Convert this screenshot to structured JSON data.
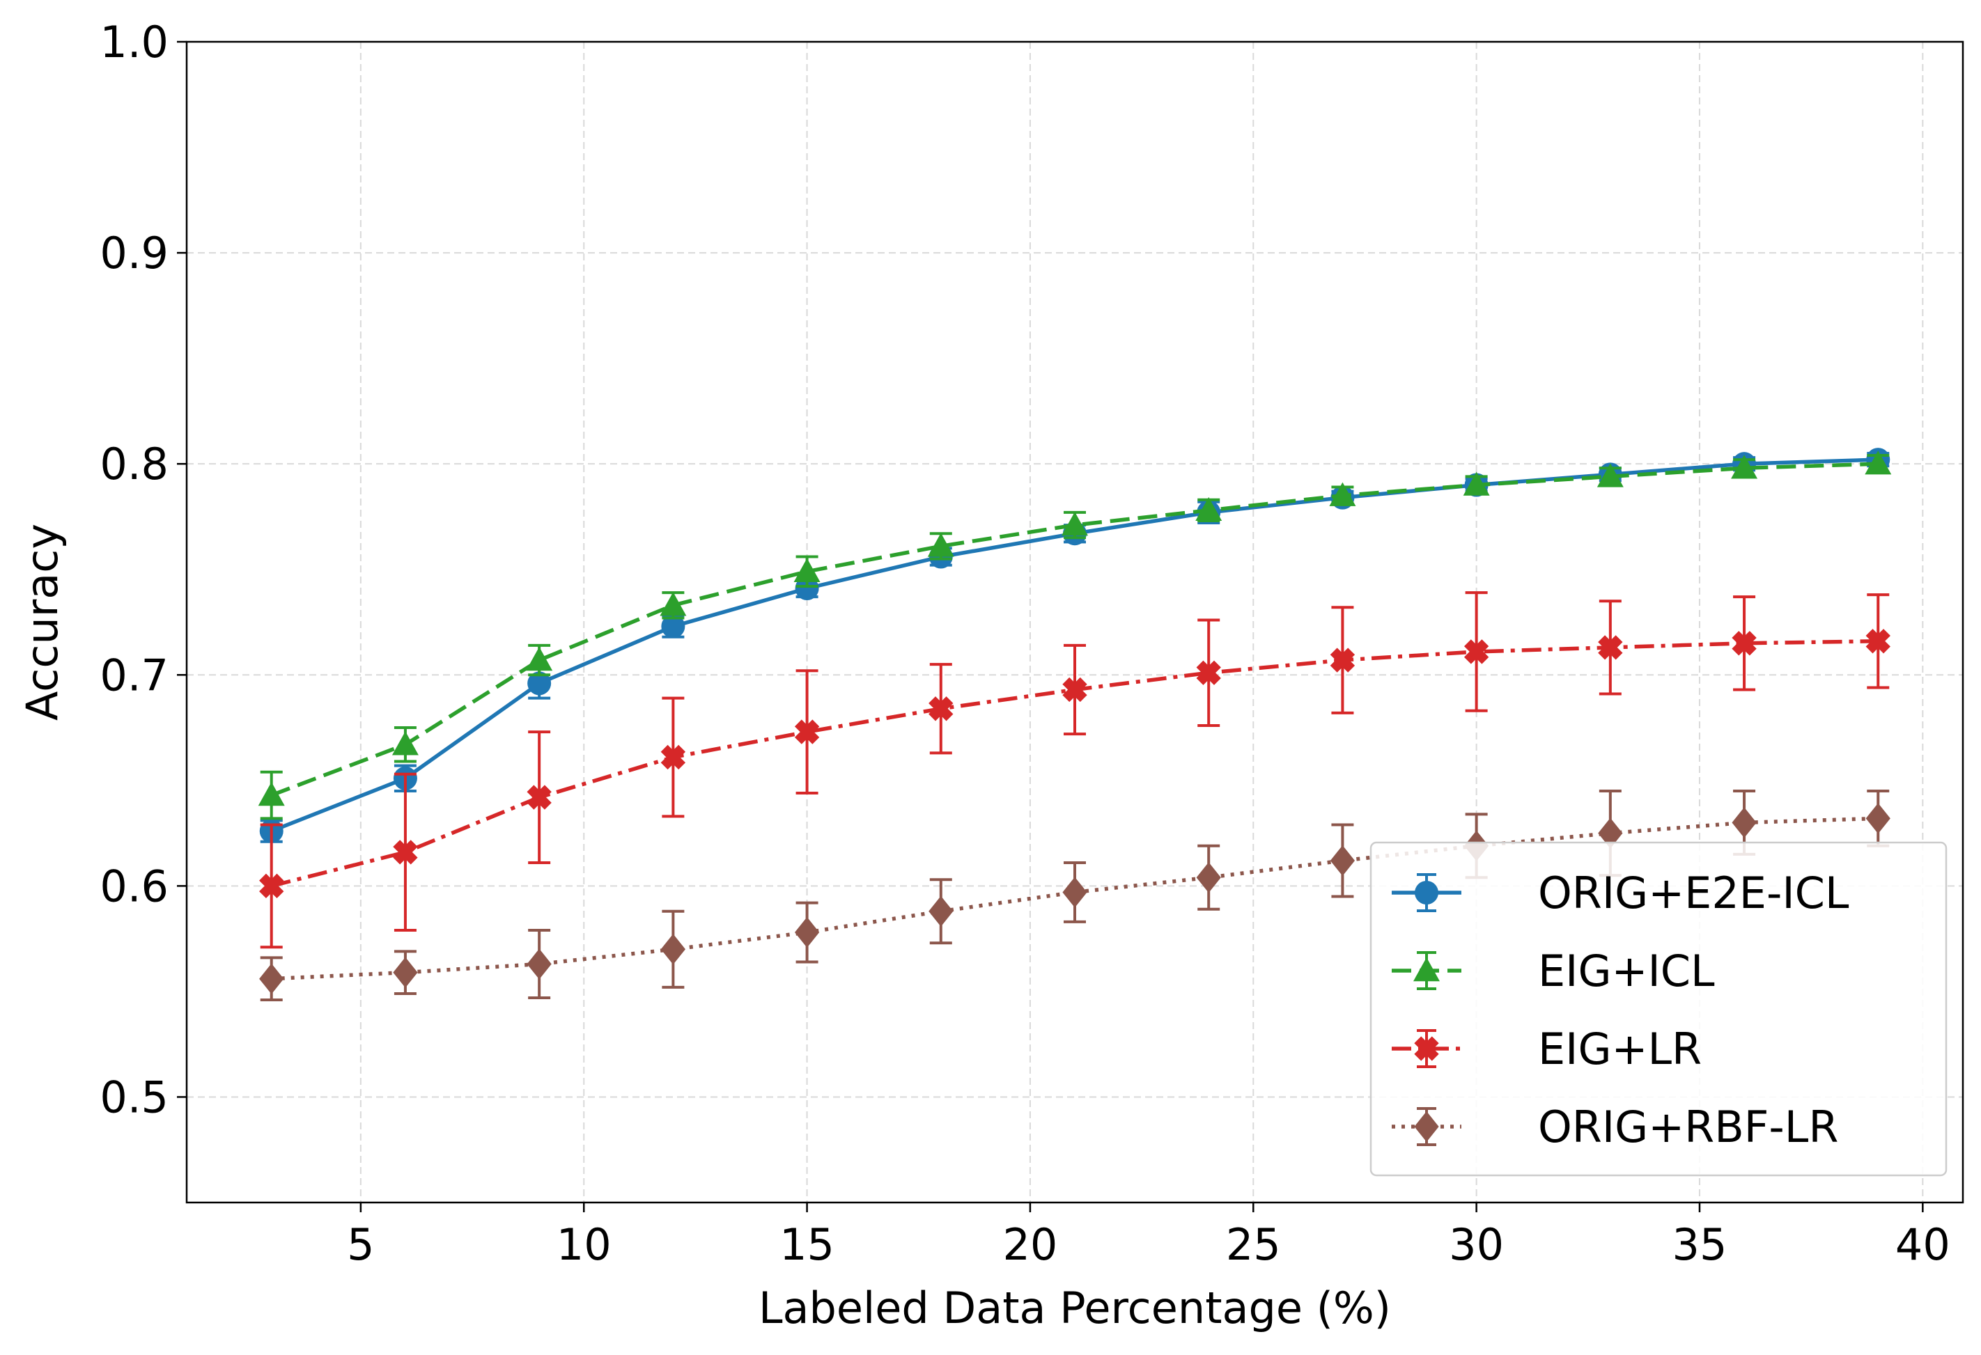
{
  "chart_data": {
    "type": "line",
    "title": "",
    "xlabel": "Labeled Data Percentage (%)",
    "ylabel": "Accuracy",
    "xlim": [
      1.1,
      40.9
    ],
    "ylim": [
      0.45,
      1.0
    ],
    "xticks": [
      5,
      10,
      15,
      20,
      25,
      30,
      35,
      40
    ],
    "yticks": [
      0.5,
      0.6,
      0.7,
      0.8,
      0.9,
      1.0
    ],
    "xtick_labels": [
      "5",
      "10",
      "15",
      "20",
      "25",
      "30",
      "35",
      "40"
    ],
    "ytick_labels": [
      "0.5",
      "0.6",
      "0.7",
      "0.8",
      "0.9",
      "1.0"
    ],
    "grid": true,
    "legend_position": "lower-right",
    "x": [
      3,
      6,
      9,
      12,
      15,
      18,
      21,
      24,
      27,
      30,
      33,
      36,
      39
    ],
    "series": [
      {
        "name": "ORIG+E2E-ICL",
        "color": "#1f77b4",
        "marker": "circle",
        "linestyle": "solid",
        "values": [
          0.626,
          0.651,
          0.696,
          0.723,
          0.741,
          0.756,
          0.767,
          0.777,
          0.784,
          0.79,
          0.795,
          0.8,
          0.802
        ],
        "errors": [
          0.005,
          0.006,
          0.007,
          0.005,
          0.004,
          0.004,
          0.004,
          0.005,
          0.003,
          0.003,
          0.003,
          0.003,
          0.003
        ]
      },
      {
        "name": "EIG+ICL",
        "color": "#2ca02c",
        "marker": "triangle",
        "linestyle": "dashed",
        "values": [
          0.643,
          0.667,
          0.707,
          0.733,
          0.749,
          0.761,
          0.771,
          0.778,
          0.785,
          0.79,
          0.794,
          0.798,
          0.8
        ],
        "errors": [
          0.011,
          0.008,
          0.007,
          0.006,
          0.007,
          0.006,
          0.006,
          0.005,
          0.004,
          0.004,
          0.004,
          0.004,
          0.004
        ]
      },
      {
        "name": "EIG+LR",
        "color": "#d62728",
        "marker": "x-filled",
        "linestyle": "dashdot",
        "values": [
          0.6,
          0.616,
          0.642,
          0.661,
          0.673,
          0.684,
          0.693,
          0.701,
          0.707,
          0.711,
          0.713,
          0.715,
          0.716
        ],
        "errors": [
          0.029,
          0.037,
          0.031,
          0.028,
          0.029,
          0.021,
          0.021,
          0.025,
          0.025,
          0.028,
          0.022,
          0.022,
          0.022
        ]
      },
      {
        "name": "ORIG+RBF-LR",
        "color": "#8c564b",
        "marker": "diamond",
        "linestyle": "dotted",
        "values": [
          0.556,
          0.559,
          0.563,
          0.57,
          0.578,
          0.588,
          0.597,
          0.604,
          0.612,
          0.619,
          0.625,
          0.63,
          0.632
        ],
        "errors": [
          0.01,
          0.01,
          0.016,
          0.018,
          0.014,
          0.015,
          0.014,
          0.015,
          0.017,
          0.015,
          0.02,
          0.015,
          0.013
        ]
      }
    ]
  }
}
